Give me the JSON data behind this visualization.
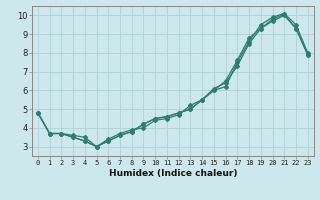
{
  "xlabel": "Humidex (Indice chaleur)",
  "bg_color": "#cde8ec",
  "grid_color": "#afd0d4",
  "line_color": "#2e7d6e",
  "xlim": [
    -0.5,
    23.5
  ],
  "ylim": [
    2.5,
    10.5
  ],
  "xticks": [
    0,
    1,
    2,
    3,
    4,
    5,
    6,
    7,
    8,
    9,
    10,
    11,
    12,
    13,
    14,
    15,
    16,
    17,
    18,
    19,
    20,
    21,
    22,
    23
  ],
  "yticks": [
    3,
    4,
    5,
    6,
    7,
    8,
    9,
    10
  ],
  "line1_x": [
    0,
    1,
    2,
    3,
    4,
    5,
    6,
    7,
    8,
    9,
    10,
    11,
    12,
    13,
    14,
    15,
    16,
    17,
    18,
    19,
    20,
    21,
    22,
    23
  ],
  "line1_y": [
    4.8,
    3.7,
    3.7,
    3.6,
    3.5,
    3.0,
    3.3,
    3.6,
    3.8,
    4.2,
    4.5,
    4.6,
    4.8,
    5.0,
    5.5,
    6.0,
    6.2,
    7.5,
    8.6,
    9.5,
    9.9,
    10.1,
    9.5,
    8.0
  ],
  "line2_x": [
    0,
    1,
    2,
    3,
    4,
    5,
    6,
    7,
    8,
    9,
    10,
    11,
    12,
    13,
    14,
    15,
    16,
    17,
    18,
    19,
    20,
    21,
    22,
    23
  ],
  "line2_y": [
    4.8,
    3.7,
    3.7,
    3.5,
    3.3,
    3.0,
    3.3,
    3.6,
    3.8,
    4.2,
    4.5,
    4.6,
    4.8,
    5.0,
    5.5,
    6.0,
    6.5,
    7.6,
    8.8,
    9.3,
    9.7,
    10.0,
    9.3,
    7.9
  ],
  "line3_x": [
    0,
    1,
    2,
    3,
    4,
    5,
    6,
    7,
    8,
    9,
    10,
    11,
    12,
    13,
    14,
    15,
    16,
    17,
    18,
    19,
    20,
    21,
    22,
    23
  ],
  "line3_y": [
    4.8,
    3.7,
    3.7,
    3.5,
    3.3,
    3.0,
    3.4,
    3.7,
    3.9,
    4.0,
    4.4,
    4.5,
    4.7,
    5.2,
    5.5,
    6.1,
    6.4,
    7.3,
    8.5,
    9.3,
    9.8,
    10.05,
    9.3,
    7.9
  ]
}
